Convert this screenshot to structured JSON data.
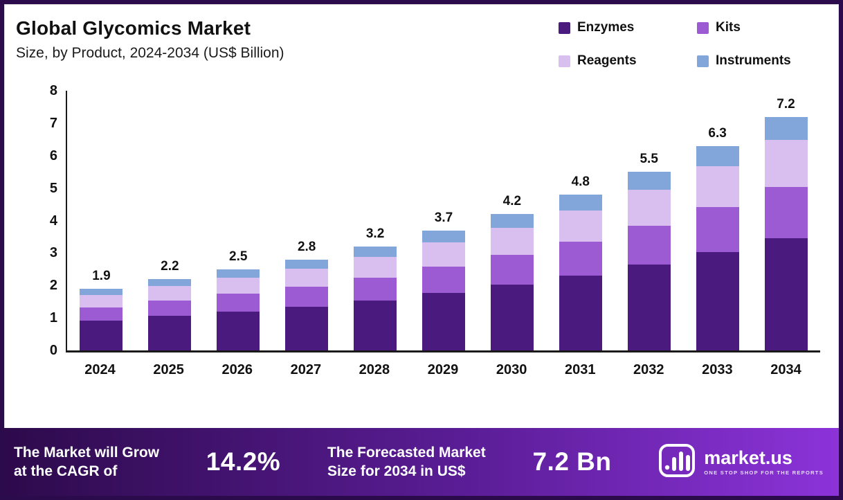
{
  "header": {
    "title": "Global Glycomics Market",
    "subtitle": "Size, by Product, 2024-2034 (US$ Billion)"
  },
  "chart_data": {
    "type": "bar",
    "stacked": true,
    "title": "Global Glycomics Market Size, by Product, 2024-2034 (US$ Billion)",
    "categories": [
      "2024",
      "2025",
      "2026",
      "2027",
      "2028",
      "2029",
      "2030",
      "2031",
      "2032",
      "2033",
      "2034"
    ],
    "series": [
      {
        "name": "Enzymes",
        "color": "#4a1a7f",
        "values": [
          0.91,
          1.06,
          1.2,
          1.34,
          1.54,
          1.78,
          2.02,
          2.3,
          2.64,
          3.02,
          3.46
        ]
      },
      {
        "name": "Kits",
        "color": "#9c5bd2",
        "values": [
          0.42,
          0.48,
          0.55,
          0.62,
          0.7,
          0.81,
          0.92,
          1.06,
          1.21,
          1.39,
          1.58
        ]
      },
      {
        "name": "Reagents",
        "color": "#d8bff0",
        "values": [
          0.38,
          0.44,
          0.5,
          0.56,
          0.64,
          0.74,
          0.84,
          0.96,
          1.1,
          1.26,
          1.44
        ]
      },
      {
        "name": "Instruments",
        "color": "#82a6d9",
        "values": [
          0.19,
          0.22,
          0.25,
          0.28,
          0.32,
          0.37,
          0.42,
          0.48,
          0.55,
          0.63,
          0.72
        ]
      }
    ],
    "totals": [
      1.9,
      2.2,
      2.5,
      2.8,
      3.2,
      3.7,
      4.2,
      4.8,
      5.5,
      6.3,
      7.2
    ],
    "ylim": [
      0,
      8
    ],
    "yticks": [
      0,
      1,
      2,
      3,
      4,
      5,
      6,
      7,
      8
    ],
    "xlabel": "",
    "ylabel": "",
    "grid": false,
    "legend_position": "top-right"
  },
  "footer": {
    "cagr_label": "The Market will Grow\nat the CAGR of",
    "cagr_value": "14.2%",
    "forecast_label": "The Forecasted Market\nSize for 2034 in US$",
    "forecast_value": "7.2 Bn",
    "gradient": [
      "#2d0a4b",
      "#5a1d96",
      "#8c33d9"
    ],
    "brand": {
      "name": "market.us",
      "tagline": "ONE STOP SHOP FOR THE REPORTS"
    }
  },
  "frame": {
    "border_color": "#2c0b4c"
  }
}
